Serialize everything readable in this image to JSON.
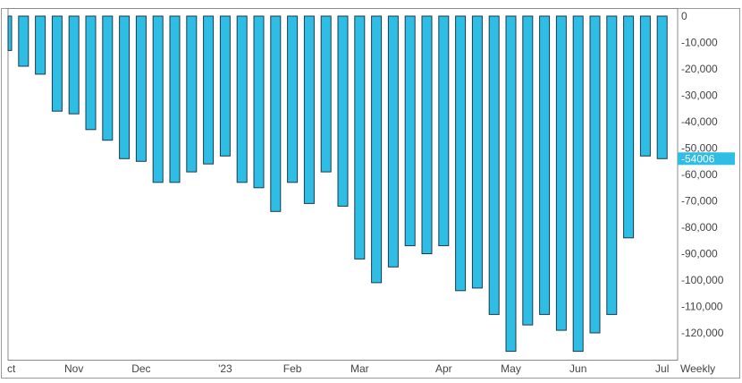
{
  "chart_data": {
    "type": "bar",
    "ylim": [
      -128000,
      0
    ],
    "y_ticks": [
      "0",
      "-10,000",
      "-20,000",
      "-30,000",
      "-40,000",
      "-50,000",
      "-60,000",
      "-70,000",
      "-80,000",
      "-90,000",
      "-100,000",
      "-110,000",
      "-120,000"
    ],
    "y_tick_values": [
      0,
      -10000,
      -20000,
      -30000,
      -40000,
      -50000,
      -60000,
      -70000,
      -80000,
      -90000,
      -100000,
      -110000,
      -120000
    ],
    "x_tick_labels": [
      "ct",
      "Nov",
      "Dec",
      "'23",
      "Feb",
      "Mar",
      "Apr",
      "May",
      "Jun",
      "Jul"
    ],
    "x_tick_bar_index": [
      0,
      4,
      8,
      13,
      17,
      21,
      26,
      30,
      34,
      39
    ],
    "periodicity_label": "Weekly",
    "last_value_label": "-54006",
    "last_value": -54006,
    "values": [
      -13000,
      -19000,
      -22000,
      -36000,
      -37000,
      -43000,
      -47000,
      -54000,
      -55000,
      -63000,
      -63000,
      -59000,
      -56000,
      -53000,
      -63000,
      -65000,
      -74000,
      -63000,
      -71000,
      -59000,
      -72000,
      -92000,
      -101000,
      -95000,
      -87000,
      -90000,
      -87000,
      -104000,
      -103000,
      -113000,
      -127000,
      -117000,
      -113000,
      -119000,
      -127000,
      -120000,
      -113000,
      -84000,
      -53000,
      -54006
    ],
    "grid": false,
    "bar_color": "#2ebde4",
    "bar_stroke": "#1d3b4a",
    "badge_color": "#2ebde4",
    "axis_color": "#888888",
    "frame_color": "#9a9a9a"
  }
}
